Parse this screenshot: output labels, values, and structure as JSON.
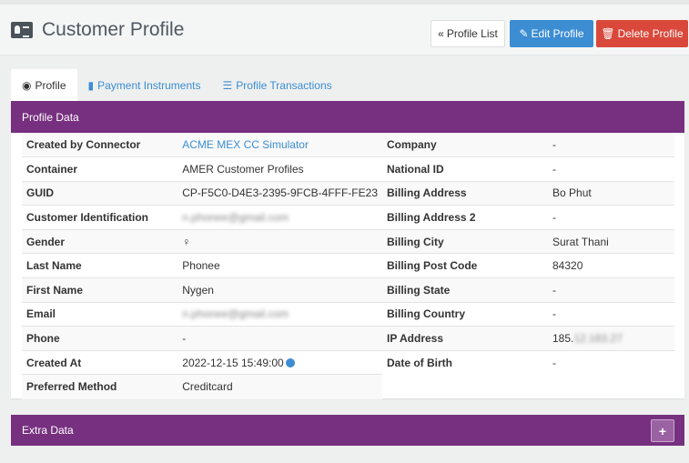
{
  "header": {
    "title": "Customer Profile",
    "icon": "id-card-icon",
    "buttons": {
      "list": "Profile List",
      "edit": "Edit Profile",
      "delete": "Delete Profile"
    }
  },
  "tabs": [
    {
      "label": "Profile",
      "icon": "user-circle-icon"
    },
    {
      "label": "Payment Instruments",
      "icon": "bookmark-icon"
    },
    {
      "label": "Profile Transactions",
      "icon": "list-icon"
    }
  ],
  "profile_panel": {
    "title": "Profile Data",
    "left": [
      {
        "k": "Created by Connector",
        "v": "ACME MEX CC Simulator"
      },
      {
        "k": "Container",
        "v": "AMER Customer Profiles"
      },
      {
        "k": "GUID",
        "v": "CP-F5C0-D4E3-2395-9FCB-4FFF-FE23"
      },
      {
        "k": "Customer Identification",
        "v": "n.phonee@gmail.com"
      },
      {
        "k": "Gender",
        "v": "♀"
      },
      {
        "k": "Last Name",
        "v": "Phonee"
      },
      {
        "k": "First Name",
        "v": "Nygen"
      },
      {
        "k": "Email",
        "v": "n.phonee@gmail.com"
      },
      {
        "k": "Phone",
        "v": "-"
      },
      {
        "k": "Created At",
        "v": "2022-12-15 15:49:00"
      },
      {
        "k": "Preferred Method",
        "v": "Creditcard"
      }
    ],
    "right": [
      {
        "k": "Company",
        "v": "-"
      },
      {
        "k": "National ID",
        "v": "-"
      },
      {
        "k": "Billing Address",
        "v": "Bo Phut"
      },
      {
        "k": "Billing Address 2",
        "v": "-"
      },
      {
        "k": "Billing City",
        "v": "Surat Thani"
      },
      {
        "k": "Billing Post Code",
        "v": "84320"
      },
      {
        "k": "Billing State",
        "v": "-"
      },
      {
        "k": "Billing Country",
        "v": "-"
      },
      {
        "k": "IP Address",
        "v": "185.",
        "v_blurred": "12.183.27"
      },
      {
        "k": "Date of Birth",
        "v": "-"
      }
    ]
  },
  "extra_panel": {
    "title": "Extra Data",
    "button": "+"
  },
  "colors": {
    "purple": "#76307f",
    "blue": "#3c8dd2",
    "red": "#d9483a"
  }
}
